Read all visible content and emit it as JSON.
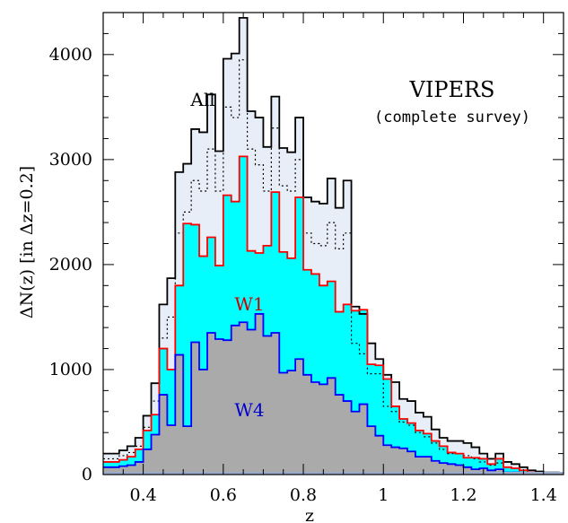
{
  "chart_data": {
    "type": "area",
    "title": "VIPERS",
    "subtitle": "(complete survey)",
    "xlabel": "z",
    "ylabel": "ΔN(z) [in Δz=0.2]",
    "xlim": [
      0.3,
      1.45
    ],
    "ylim": [
      0,
      4400
    ],
    "xticks": [
      0.4,
      0.6,
      0.8,
      1,
      1.2,
      1.4
    ],
    "xtick_labels": [
      "0.4",
      "0.6",
      "0.8",
      "1",
      "1.2",
      "1.4"
    ],
    "yticks": [
      0,
      1000,
      2000,
      3000,
      4000
    ],
    "ytick_labels": [
      "0",
      "1000",
      "2000",
      "3000",
      "4000"
    ],
    "bin_width": 0.02,
    "x": [
      0.31,
      0.33,
      0.35,
      0.37,
      0.39,
      0.41,
      0.43,
      0.45,
      0.47,
      0.49,
      0.51,
      0.53,
      0.55,
      0.57,
      0.59,
      0.61,
      0.63,
      0.65,
      0.67,
      0.69,
      0.71,
      0.73,
      0.75,
      0.77,
      0.79,
      0.81,
      0.83,
      0.85,
      0.87,
      0.89,
      0.91,
      0.93,
      0.95,
      0.97,
      0.99,
      1.01,
      1.03,
      1.05,
      1.07,
      1.09,
      1.11,
      1.13,
      1.15,
      1.17,
      1.19,
      1.21,
      1.23,
      1.25,
      1.27,
      1.29,
      1.31,
      1.33,
      1.35,
      1.37,
      1.39,
      1.41,
      1.43
    ],
    "series": [
      {
        "name": "All",
        "color": "#000000",
        "fill": "#e8eef8",
        "values": [
          200,
          200,
          230,
          270,
          350,
          560,
          870,
          1620,
          1870,
          2880,
          2960,
          3290,
          3260,
          3620,
          3080,
          3960,
          4010,
          4350,
          3460,
          3400,
          3120,
          3600,
          3110,
          3070,
          3400,
          2640,
          2600,
          2580,
          2820,
          2540,
          2800,
          1600,
          1530,
          1250,
          1100,
          950,
          880,
          720,
          700,
          590,
          550,
          430,
          350,
          320,
          320,
          300,
          260,
          200,
          150,
          200,
          120,
          100,
          70,
          40,
          30,
          20,
          20
        ]
      },
      {
        "name": "dotted",
        "color": "#000000",
        "dashed": true,
        "values": [
          150,
          150,
          180,
          210,
          270,
          450,
          700,
          1300,
          1500,
          2300,
          2500,
          2800,
          2700,
          3100,
          2700,
          3500,
          3400,
          3950,
          3100,
          2950,
          2700,
          3300,
          2750,
          2700,
          3000,
          2300,
          2200,
          2180,
          2400,
          2150,
          2300,
          1250,
          1150,
          960,
          960,
          650,
          600,
          500,
          470,
          400,
          360,
          300,
          240,
          200,
          200,
          180,
          150,
          120,
          90,
          110,
          70,
          60,
          40,
          20,
          15,
          10,
          10
        ]
      },
      {
        "name": "W1",
        "color": "#ff0000",
        "fill": "#00ffff",
        "values": [
          120,
          120,
          140,
          170,
          240,
          420,
          570,
          1200,
          1000,
          1800,
          2390,
          2380,
          2080,
          2260,
          1990,
          2660,
          2600,
          3030,
          2130,
          2110,
          2180,
          2690,
          2120,
          2060,
          2640,
          1950,
          1910,
          1800,
          1840,
          1550,
          1620,
          1560,
          1570,
          1050,
          1040,
          910,
          650,
          530,
          490,
          420,
          390,
          320,
          270,
          210,
          200,
          160,
          160,
          150,
          100,
          150,
          70,
          60,
          40,
          20,
          15,
          10,
          10
        ]
      },
      {
        "name": "W4",
        "color": "#0000ff",
        "fill": "#aaaaaa",
        "values": [
          70,
          70,
          80,
          90,
          120,
          240,
          380,
          760,
          470,
          1140,
          460,
          1260,
          1000,
          1350,
          1290,
          1280,
          1420,
          1450,
          1380,
          1530,
          1320,
          1350,
          970,
          990,
          1100,
          950,
          880,
          860,
          920,
          760,
          700,
          600,
          670,
          460,
          370,
          280,
          260,
          250,
          220,
          170,
          170,
          130,
          110,
          100,
          90,
          70,
          50,
          60,
          40,
          50,
          20,
          20,
          10,
          5,
          5,
          5,
          5
        ]
      }
    ]
  },
  "colors": {
    "axis": "#000000",
    "baseline": "#9aaacc"
  }
}
